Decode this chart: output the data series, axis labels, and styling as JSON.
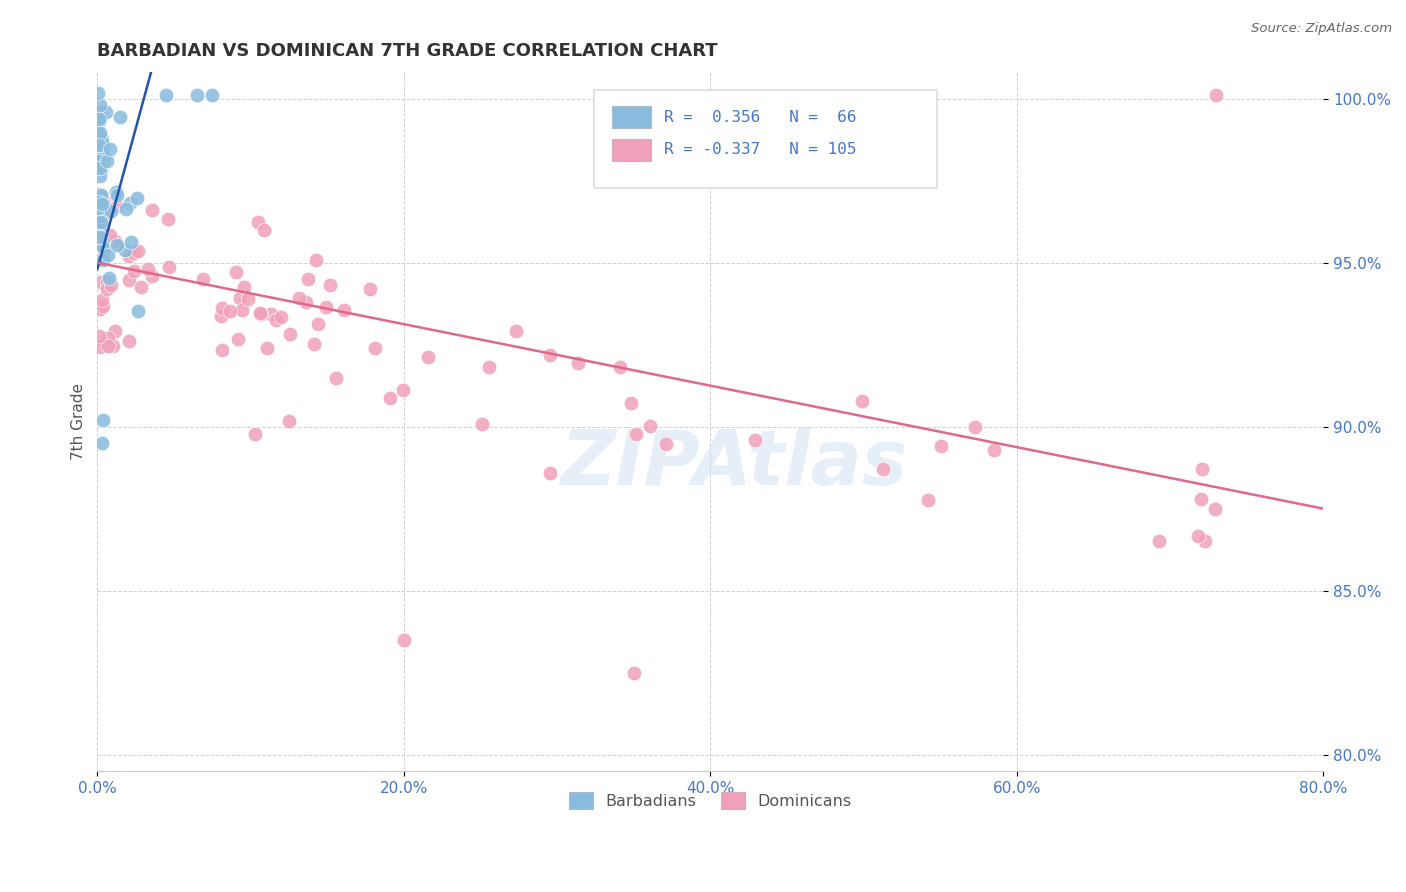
{
  "title": "BARBADIAN VS DOMINICAN 7TH GRADE CORRELATION CHART",
  "source": "Source: ZipAtlas.com",
  "ylabel_left": "7th Grade",
  "blue_color": "#88bbdd",
  "pink_color": "#f0a0b8",
  "blue_line_color": "#2255aa",
  "pink_line_color": "#e06888",
  "watermark": "ZipAtlas",
  "xlim": [
    0,
    80
  ],
  "ylim": [
    79.5,
    100.8
  ],
  "yticks": [
    80,
    85,
    90,
    95,
    100
  ],
  "xticks": [
    0,
    20,
    40,
    60,
    80
  ],
  "grid_color": "#cccccc",
  "bg_color": "#ffffff",
  "title_color": "#333333",
  "tick_label_color": "#4477cc",
  "blue_line_x": [
    0,
    3.5
  ],
  "blue_line_y": [
    94.8,
    100.8
  ],
  "pink_line_x": [
    0,
    80
  ],
  "pink_line_y": [
    95.0,
    87.5
  ]
}
